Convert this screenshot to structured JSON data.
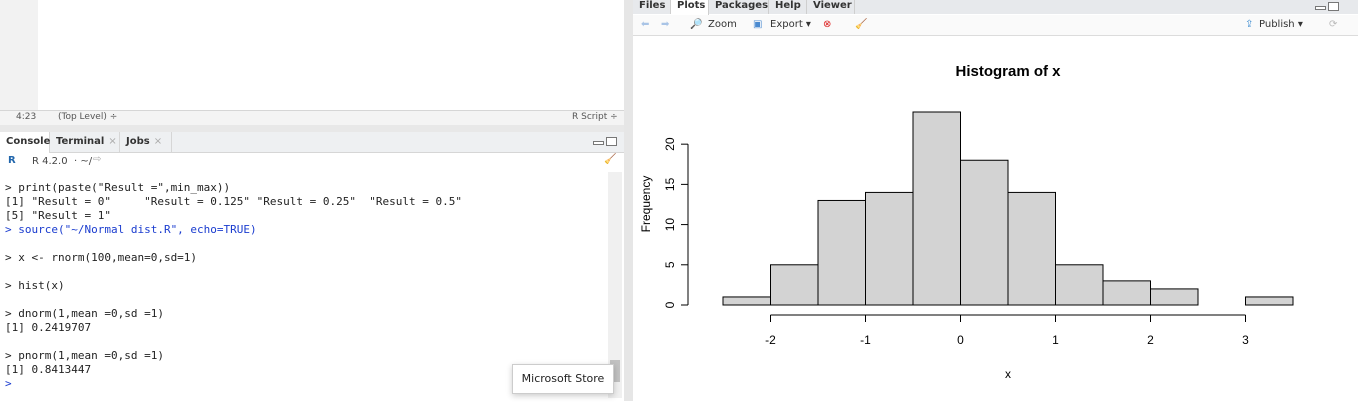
{
  "editor": {
    "position": "4:23",
    "scope": "(Top Level) ÷",
    "filetype": "R Script ÷"
  },
  "console_tabs": [
    {
      "label": "Console",
      "closable": false
    },
    {
      "label": "Terminal",
      "closable": true
    },
    {
      "label": "Jobs",
      "closable": true
    }
  ],
  "console_header": {
    "version": "R 4.2.0",
    "path": "· ~/"
  },
  "console_lines": [
    "> print(paste(\"Result =\",min_max))",
    "[1] \"Result = 0\"     \"Result = 0.125\" \"Result = 0.25\"  \"Result = 0.5\"",
    "[5] \"Result = 1\"",
    "> source(\"~/Normal dist.R\", echo=TRUE)",
    "",
    "> x <- rnorm(100,mean=0,sd=1)",
    "",
    "> hist(x)",
    "",
    "> dnorm(1,mean =0,sd =1)",
    "[1] 0.2419707",
    "",
    "> pnorm(1,mean =0,sd =1)",
    "[1] 0.8413447",
    ">"
  ],
  "tooltip": "Microsoft Store",
  "right_tabs": [
    "Files",
    "Plots",
    "Packages",
    "Help",
    "Viewer"
  ],
  "plot_toolbar": {
    "zoom": "Zoom",
    "export": "Export ▾",
    "publish": "Publish ▾"
  },
  "chart_data": {
    "type": "bar",
    "title": "Histogram of x",
    "xlabel": "x",
    "ylabel": "Frequency",
    "bin_edges": [
      -2.5,
      -2.0,
      -1.5,
      -1.0,
      -0.5,
      0.0,
      0.5,
      1.0,
      1.5,
      2.0,
      2.5,
      3.0,
      3.5
    ],
    "values": [
      1,
      5,
      13,
      14,
      24,
      18,
      14,
      5,
      3,
      2,
      0,
      1
    ],
    "xticks": [
      -2,
      -1,
      0,
      1,
      2,
      3
    ],
    "yticks": [
      0,
      5,
      10,
      15,
      20
    ],
    "xlim": [
      -2.5,
      3.5
    ],
    "ylim": [
      0,
      24
    ],
    "bar_color": "#d3d3d3",
    "grid": false
  }
}
